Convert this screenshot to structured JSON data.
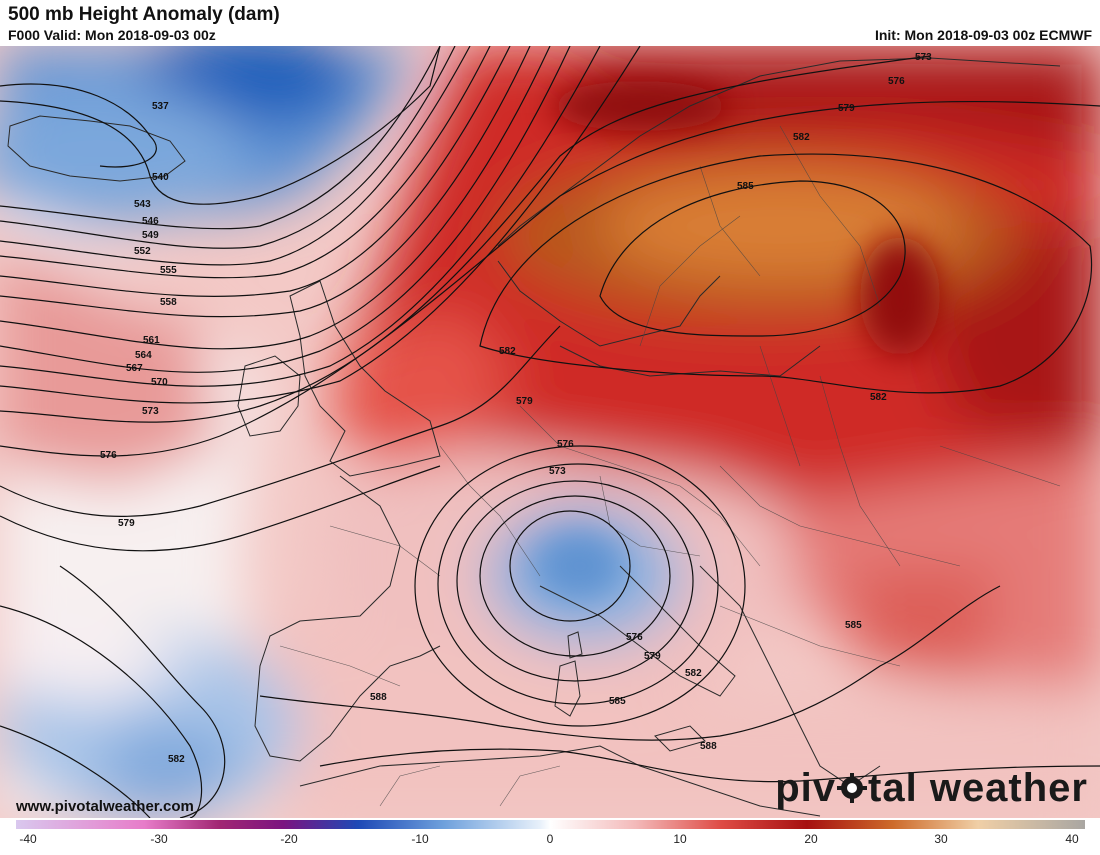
{
  "header": {
    "title": "500 mb Height Anomaly (dam)",
    "valid": "F000 Valid: Mon 2018-09-03 00z",
    "init": "Init: Mon 2018-09-03 00z ECMWF"
  },
  "footer": {
    "website": "www.pivotalweather.com",
    "brand_prefix": "piv",
    "brand_suffix": "tal weather"
  },
  "contour_labels": [
    "573",
    "576",
    "579",
    "582",
    "585",
    "537",
    "540",
    "543",
    "546",
    "549",
    "552",
    "555",
    "558",
    "561",
    "564",
    "567",
    "570",
    "573",
    "576",
    "579",
    "582",
    "585",
    "588",
    "588",
    "579",
    "576",
    "573",
    "576",
    "579",
    "582",
    "582",
    "585"
  ],
  "colorbar": {
    "ticks": [
      "-40",
      "-30",
      "-20",
      "-10",
      "0",
      "10",
      "20",
      "30",
      "40"
    ],
    "min": -40,
    "max": 40
  },
  "colors": {
    "deep_blue": "#2e6fc4",
    "light_blue": "#bcd3ee",
    "red": "#d42a2a",
    "dark_red": "#9b0f0f",
    "orange": "#cd6a2a"
  }
}
